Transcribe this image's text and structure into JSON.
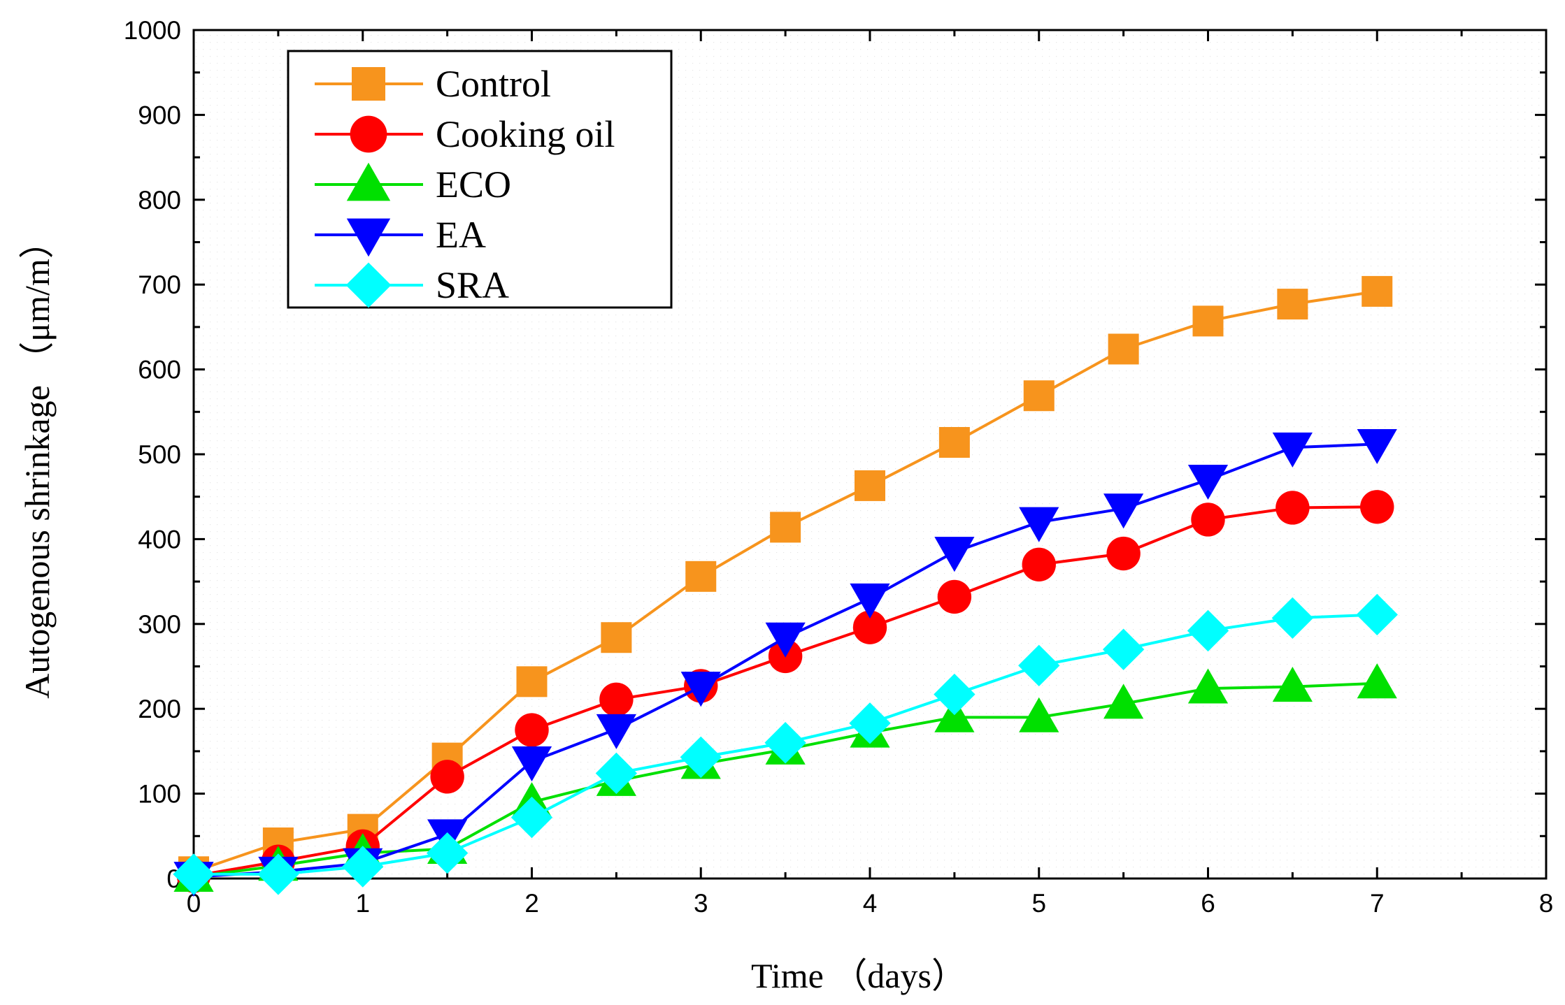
{
  "chart_data": {
    "type": "line",
    "title": "",
    "xlabel": "Time  （days）",
    "ylabel": "Autogenous shrinkage （μm/m）",
    "xlim": [
      0,
      8
    ],
    "ylim": [
      0,
      1000
    ],
    "xticks": [
      "0",
      "1",
      "2",
      "3",
      "4",
      "5",
      "6",
      "7",
      "8"
    ],
    "yticks": [
      "0",
      "100",
      "200",
      "300",
      "400",
      "500",
      "600",
      "700",
      "800",
      "900",
      "1000"
    ],
    "grid": false,
    "legend_position": "top-left",
    "x": [
      0,
      0.5,
      1,
      1.5,
      2,
      2.5,
      3,
      3.5,
      4,
      4.5,
      5,
      5.5,
      6,
      6.5,
      7
    ],
    "series": [
      {
        "name": "Control",
        "color": "#f7941d",
        "marker": "square",
        "values": [
          8,
          42,
          58,
          142,
          232,
          284,
          356,
          414,
          463,
          514,
          569,
          624,
          657,
          677,
          692
        ]
      },
      {
        "name": "Cooking oil",
        "color": "#ff0000",
        "marker": "circle",
        "values": [
          3,
          20,
          38,
          120,
          175,
          211,
          227,
          262,
          296,
          332,
          370,
          383,
          423,
          437,
          438
        ]
      },
      {
        "name": "ECO",
        "color": "#00e000",
        "marker": "triangle-up",
        "values": [
          2,
          15,
          30,
          35,
          90,
          115,
          135,
          152,
          172,
          190,
          190,
          206,
          224,
          226,
          230
        ]
      },
      {
        "name": "EA",
        "color": "#0000ff",
        "marker": "triangle-down",
        "values": [
          2,
          8,
          18,
          52,
          138,
          176,
          226,
          284,
          330,
          385,
          420,
          436,
          470,
          508,
          512
        ]
      },
      {
        "name": "SRA",
        "color": "#00ffff",
        "marker": "diamond",
        "values": [
          5,
          5,
          14,
          30,
          72,
          124,
          143,
          160,
          183,
          217,
          251,
          270,
          292,
          307,
          311
        ]
      }
    ]
  }
}
